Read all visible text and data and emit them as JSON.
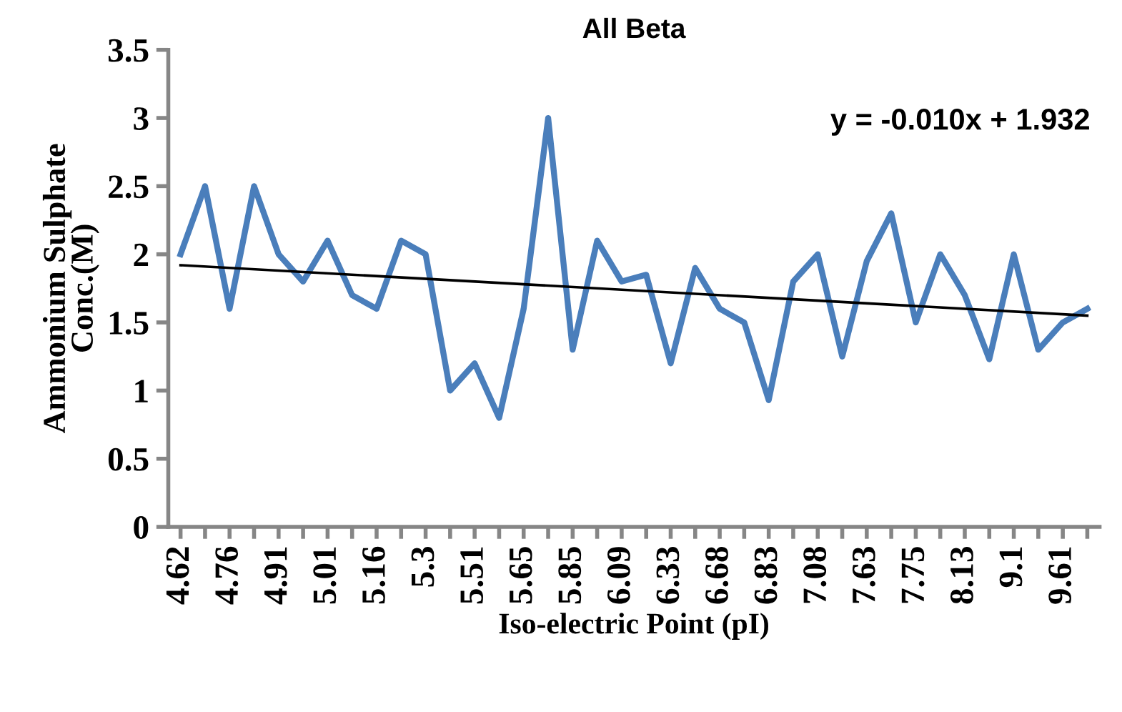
{
  "chart_data": {
    "type": "line",
    "title": "All Beta",
    "xlabel": "Iso-electric Point (pI)",
    "ylabel": "Ammonium Sulphate\nConc.(M)",
    "categories": [
      "4.62",
      null,
      "4.76",
      null,
      "4.91",
      null,
      "5.01",
      null,
      "5.16",
      null,
      "5.3",
      null,
      "5.51",
      null,
      "5.65",
      null,
      "5.85",
      null,
      "6.09",
      null,
      "6.33",
      null,
      "6.68",
      null,
      "6.83",
      null,
      "7.08",
      null,
      "7.63",
      null,
      "7.75",
      null,
      "8.13",
      null,
      "9.1",
      null,
      "9.61",
      null
    ],
    "series": [
      {
        "color": "#4a7ebb",
        "values": [
          2.0,
          2.5,
          1.6,
          2.5,
          2.0,
          1.8,
          2.1,
          1.7,
          1.6,
          2.1,
          2.0,
          1.0,
          1.2,
          0.8,
          1.6,
          3.0,
          1.3,
          2.1,
          1.8,
          1.85,
          1.2,
          1.9,
          1.6,
          1.5,
          0.93,
          1.8,
          2.0,
          1.25,
          1.95,
          2.3,
          1.5,
          2.0,
          1.7,
          1.23,
          2.0,
          1.3,
          1.5,
          1.6
        ]
      },
      {
        "color": "#000000",
        "values": [
          1.92,
          null,
          null,
          null,
          null,
          null,
          null,
          null,
          null,
          null,
          null,
          null,
          null,
          null,
          null,
          null,
          null,
          null,
          null,
          null,
          null,
          null,
          null,
          null,
          null,
          null,
          null,
          null,
          null,
          null,
          null,
          null,
          null,
          null,
          null,
          null,
          null,
          1.55
        ]
      }
    ],
    "annotations": [
      "y = -0.010x + 1.932"
    ],
    "ylim": [
      0,
      3.5
    ],
    "yticks": [
      0,
      0.5,
      1,
      1.5,
      2,
      2.5,
      3,
      3.5
    ],
    "grid": false,
    "legend": false,
    "marker": "none",
    "line_style": "solid"
  }
}
